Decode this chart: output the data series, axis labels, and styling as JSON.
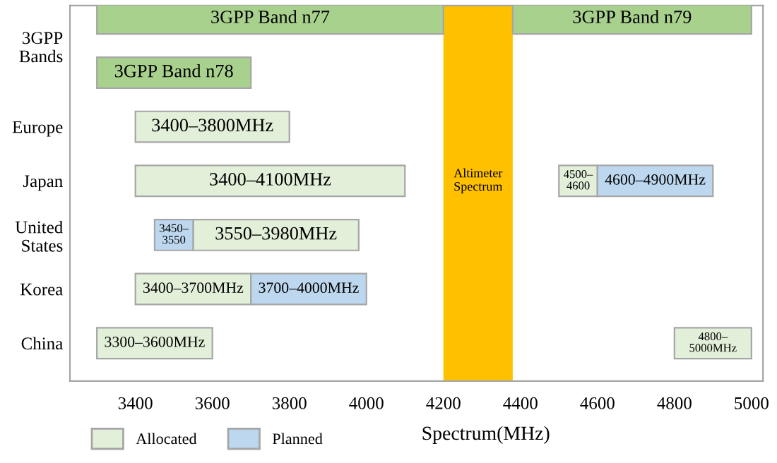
{
  "chart_data": {
    "type": "bar",
    "orientation": "horizontal",
    "xlabel": "Spectrum(MHz)",
    "categories": [
      "3GPP Bands",
      null,
      "Europe",
      "Japan",
      "United States",
      "Korea",
      "China"
    ],
    "series": [
      {
        "name": "3GPP Band n77",
        "color": "#a9d18e",
        "base": [
          3300,
          null,
          null,
          null,
          null,
          null,
          null
        ],
        "values": [
          900,
          null,
          null,
          null,
          null,
          null,
          null
        ]
      },
      {
        "name": "3GPP Band n78",
        "color": "#a9d18e",
        "base": [
          null,
          3300,
          null,
          null,
          null,
          null,
          null
        ],
        "values": [
          null,
          400,
          null,
          null,
          null,
          null,
          null
        ]
      },
      {
        "name": "3GPP Band n79",
        "color": "#a9d18e",
        "base": [
          4380,
          null,
          null,
          null,
          null,
          null,
          null
        ],
        "values": [
          620,
          null,
          null,
          null,
          null,
          null,
          null
        ]
      },
      {
        "name": "Allocated",
        "color": "#e2efd9",
        "base": [
          null,
          null,
          3400,
          3400,
          3550,
          3400,
          3300
        ],
        "values": [
          null,
          null,
          400,
          700,
          430,
          300,
          300
        ],
        "value_labels": [
          null,
          null,
          "3400–3800MHz",
          "3400–4100MHz",
          "3550–3980MHz",
          "3400–3700MHz",
          "3300–3600MHz"
        ]
      },
      {
        "color": "#e2efd9",
        "base": [
          null,
          null,
          null,
          4500,
          null,
          null,
          4800
        ],
        "values": [
          null,
          null,
          null,
          100,
          null,
          null,
          200
        ],
        "value_labels": [
          null,
          null,
          null,
          "4500–\n4600",
          null,
          null,
          "4800–\n5000MHz"
        ]
      },
      {
        "name": "Planned",
        "color": "#bdd7ee",
        "base": [
          null,
          null,
          null,
          4600,
          3450,
          3700,
          null
        ],
        "values": [
          null,
          null,
          null,
          300,
          100,
          300,
          null
        ],
        "value_labels": [
          null,
          null,
          null,
          "4600–4900MHz",
          "3450–\n3550",
          "3700–4000MHz",
          null
        ]
      }
    ],
    "bands": [
      {
        "axis": "x",
        "from": 4200,
        "to": 4380,
        "label": "Altimeter\nSpectrum",
        "color": "#ffc000"
      }
    ],
    "xlim": [
      3230,
      5030
    ],
    "xticks": [
      3400,
      3600,
      3800,
      4000,
      4200,
      4400,
      4600,
      4800,
      5000
    ],
    "grid": false,
    "legend": "bottom"
  }
}
